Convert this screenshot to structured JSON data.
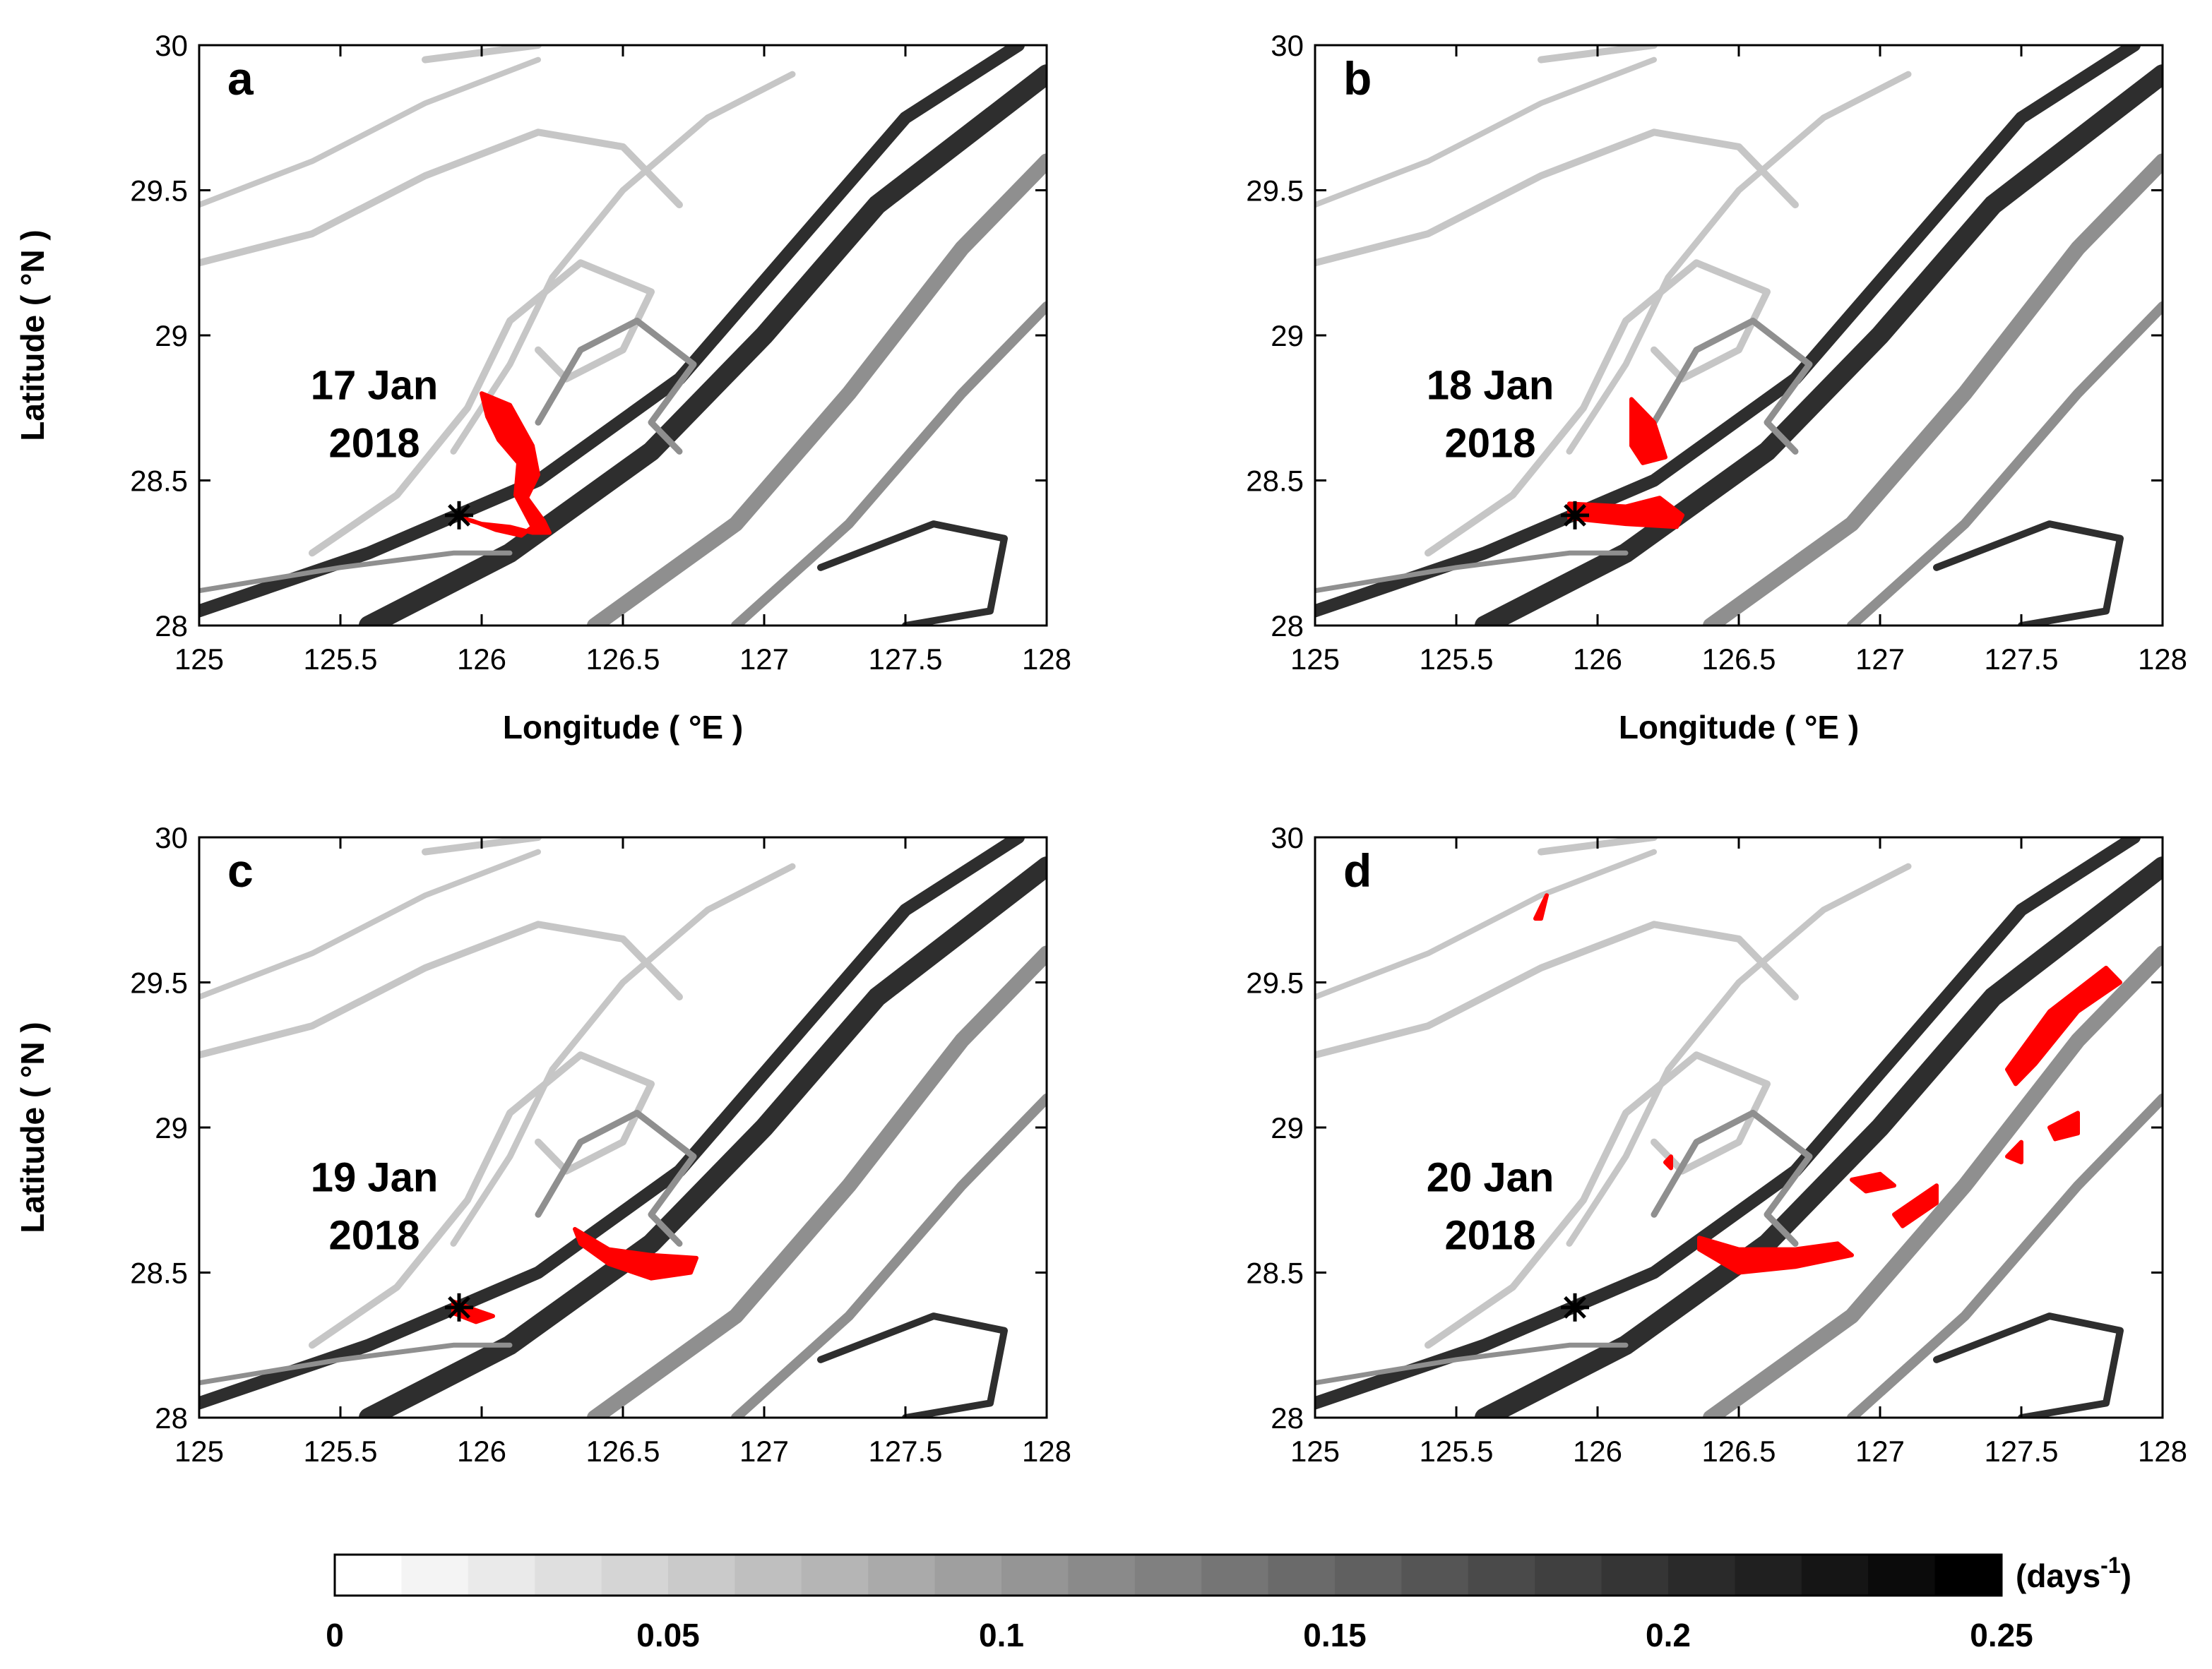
{
  "chart_data": [
    {
      "type": "heatmap",
      "panel": "a",
      "date_line1": "17 Jan",
      "date_line2": "2018",
      "xlabel": "Longitude ( °E )",
      "ylabel": "Latitude ( °N )",
      "xlim": [
        125,
        128
      ],
      "ylim": [
        28,
        30
      ],
      "xticks": [
        "125",
        "125.5",
        "126",
        "126.5",
        "127",
        "127.5",
        "128"
      ],
      "yticks": [
        "28",
        "28.5",
        "29",
        "29.5",
        "30"
      ],
      "release_point": {
        "lon": 125.92,
        "lat": 28.38
      },
      "particle_patches": [
        [
          [
            126.0,
            28.8
          ],
          [
            126.1,
            28.76
          ],
          [
            126.18,
            28.62
          ],
          [
            126.2,
            28.52
          ],
          [
            126.16,
            28.44
          ],
          [
            126.22,
            28.36
          ],
          [
            126.24,
            28.32
          ],
          [
            126.18,
            28.32
          ],
          [
            126.1,
            28.34
          ],
          [
            126.0,
            28.35
          ],
          [
            125.93,
            28.37
          ],
          [
            125.97,
            28.36
          ],
          [
            126.05,
            28.33
          ],
          [
            126.14,
            28.31
          ],
          [
            126.18,
            28.34
          ],
          [
            126.12,
            28.45
          ],
          [
            126.13,
            28.56
          ],
          [
            126.06,
            28.64
          ],
          [
            126.02,
            28.72
          ],
          [
            126.0,
            28.8
          ]
        ]
      ]
    },
    {
      "type": "heatmap",
      "panel": "b",
      "date_line1": "18 Jan",
      "date_line2": "2018",
      "xlabel": "Longitude ( °E )",
      "ylabel": "",
      "xlim": [
        125,
        128
      ],
      "ylim": [
        28,
        30
      ],
      "xticks": [
        "125",
        "125.5",
        "126",
        "126.5",
        "127",
        "127.5",
        "128"
      ],
      "yticks": [
        "28",
        "28.5",
        "29",
        "29.5",
        "30"
      ],
      "release_point": {
        "lon": 125.92,
        "lat": 28.38
      },
      "particle_patches": [
        [
          [
            126.12,
            28.78
          ],
          [
            126.2,
            28.7
          ],
          [
            126.24,
            28.58
          ],
          [
            126.16,
            28.56
          ],
          [
            126.12,
            28.62
          ],
          [
            126.12,
            28.78
          ]
        ],
        [
          [
            125.9,
            28.42
          ],
          [
            126.1,
            28.41
          ],
          [
            126.22,
            28.44
          ],
          [
            126.3,
            28.38
          ],
          [
            126.28,
            28.34
          ],
          [
            126.1,
            28.35
          ],
          [
            125.9,
            28.37
          ],
          [
            125.9,
            28.42
          ]
        ]
      ]
    },
    {
      "type": "heatmap",
      "panel": "c",
      "date_line1": "19 Jan",
      "date_line2": "2018",
      "xlabel": "",
      "ylabel": "Latitude ( °N )",
      "xlim": [
        125,
        128
      ],
      "ylim": [
        28,
        30
      ],
      "xticks": [
        "125",
        "125.5",
        "126",
        "126.5",
        "127",
        "127.5",
        "128"
      ],
      "yticks": [
        "28",
        "28.5",
        "29",
        "29.5",
        "30"
      ],
      "release_point": {
        "lon": 125.92,
        "lat": 28.38
      },
      "particle_patches": [
        [
          [
            126.33,
            28.65
          ],
          [
            126.45,
            28.58
          ],
          [
            126.6,
            28.56
          ],
          [
            126.76,
            28.55
          ],
          [
            126.74,
            28.5
          ],
          [
            126.6,
            28.48
          ],
          [
            126.45,
            28.53
          ],
          [
            126.35,
            28.6
          ],
          [
            126.33,
            28.65
          ]
        ],
        [
          [
            125.9,
            28.4
          ],
          [
            125.98,
            28.37
          ],
          [
            126.04,
            28.35
          ],
          [
            125.98,
            28.33
          ],
          [
            125.9,
            28.36
          ],
          [
            125.9,
            28.4
          ]
        ]
      ]
    },
    {
      "type": "heatmap",
      "panel": "d",
      "date_line1": "20 Jan",
      "date_line2": "2018",
      "xlabel": "",
      "ylabel": "",
      "xlim": [
        125,
        128
      ],
      "ylim": [
        28,
        30
      ],
      "xticks": [
        "125",
        "125.5",
        "126",
        "126.5",
        "127",
        "127.5",
        "128"
      ],
      "yticks": [
        "28",
        "28.5",
        "29",
        "29.5",
        "30"
      ],
      "release_point": {
        "lon": 125.92,
        "lat": 28.38
      },
      "particle_patches": [
        [
          [
            125.78,
            29.72
          ],
          [
            125.8,
            29.76
          ],
          [
            125.82,
            29.8
          ],
          [
            125.8,
            29.72
          ],
          [
            125.78,
            29.72
          ]
        ],
        [
          [
            126.24,
            28.88
          ],
          [
            126.26,
            28.9
          ],
          [
            126.26,
            28.86
          ],
          [
            126.24,
            28.88
          ]
        ],
        [
          [
            126.36,
            28.62
          ],
          [
            126.5,
            28.58
          ],
          [
            126.7,
            28.58
          ],
          [
            126.85,
            28.6
          ],
          [
            126.9,
            28.56
          ],
          [
            126.7,
            28.52
          ],
          [
            126.5,
            28.5
          ],
          [
            126.36,
            28.58
          ],
          [
            126.36,
            28.62
          ]
        ],
        [
          [
            126.9,
            28.82
          ],
          [
            127.0,
            28.84
          ],
          [
            127.05,
            28.8
          ],
          [
            126.95,
            28.78
          ],
          [
            126.9,
            28.82
          ]
        ],
        [
          [
            127.05,
            28.7
          ],
          [
            127.2,
            28.8
          ],
          [
            127.2,
            28.74
          ],
          [
            127.08,
            28.66
          ],
          [
            127.05,
            28.7
          ]
        ],
        [
          [
            127.45,
            29.2
          ],
          [
            127.6,
            29.4
          ],
          [
            127.8,
            29.55
          ],
          [
            127.85,
            29.5
          ],
          [
            127.7,
            29.4
          ],
          [
            127.55,
            29.22
          ],
          [
            127.48,
            29.15
          ],
          [
            127.45,
            29.2
          ]
        ],
        [
          [
            127.6,
            29.0
          ],
          [
            127.7,
            29.05
          ],
          [
            127.7,
            28.98
          ],
          [
            127.62,
            28.96
          ],
          [
            127.6,
            29.0
          ]
        ],
        [
          [
            127.45,
            28.9
          ],
          [
            127.5,
            28.95
          ],
          [
            127.5,
            28.88
          ],
          [
            127.45,
            28.9
          ]
        ]
      ]
    }
  ],
  "colorbar": {
    "min": 0,
    "max": 0.25,
    "steps": 25,
    "tick_labels": [
      "0",
      "0.05",
      "0.1",
      "0.15",
      "0.2",
      "0.25"
    ],
    "units_base": "(days",
    "units_exp": "-1",
    "units_close": ")"
  },
  "colors": {
    "particles": "#ff0000",
    "axes": "#000000",
    "ridge_light": "#c6c6c6",
    "ridge_mid": "#8f8f8f",
    "ridge_dark": "#2e2e2e"
  }
}
